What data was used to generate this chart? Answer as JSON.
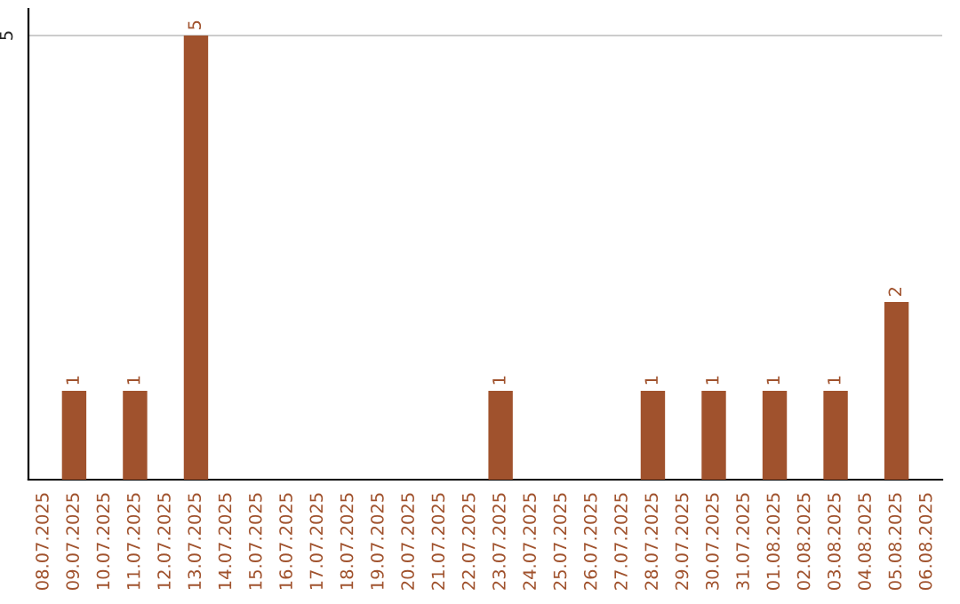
{
  "chart_data": {
    "type": "bar",
    "categories": [
      "08.07.2025",
      "09.07.2025",
      "10.07.2025",
      "11.07.2025",
      "12.07.2025",
      "13.07.2025",
      "14.07.2025",
      "15.07.2025",
      "16.07.2025",
      "17.07.2025",
      "18.07.2025",
      "19.07.2025",
      "20.07.2025",
      "21.07.2025",
      "22.07.2025",
      "23.07.2025",
      "24.07.2025",
      "25.07.2025",
      "26.07.2025",
      "27.07.2025",
      "28.07.2025",
      "29.07.2025",
      "30.07.2025",
      "31.07.2025",
      "01.08.2025",
      "02.08.2025",
      "03.08.2025",
      "04.08.2025",
      "05.08.2025",
      "06.08.2025"
    ],
    "values": [
      0,
      1,
      0,
      1,
      0,
      5,
      0,
      0,
      0,
      0,
      0,
      0,
      0,
      0,
      0,
      1,
      0,
      0,
      0,
      0,
      1,
      0,
      1,
      0,
      1,
      0,
      1,
      0,
      2,
      0
    ],
    "value_labels": [
      null,
      "1",
      null,
      "1",
      null,
      "5",
      null,
      null,
      null,
      null,
      null,
      null,
      null,
      null,
      null,
      "1",
      null,
      null,
      null,
      null,
      "1",
      null,
      "1",
      null,
      "1",
      null,
      "1",
      null,
      "2",
      null
    ],
    "color": "#a0522d",
    "ylim": [
      0,
      5.3
    ],
    "yticks": [
      5
    ],
    "grid": "y"
  }
}
